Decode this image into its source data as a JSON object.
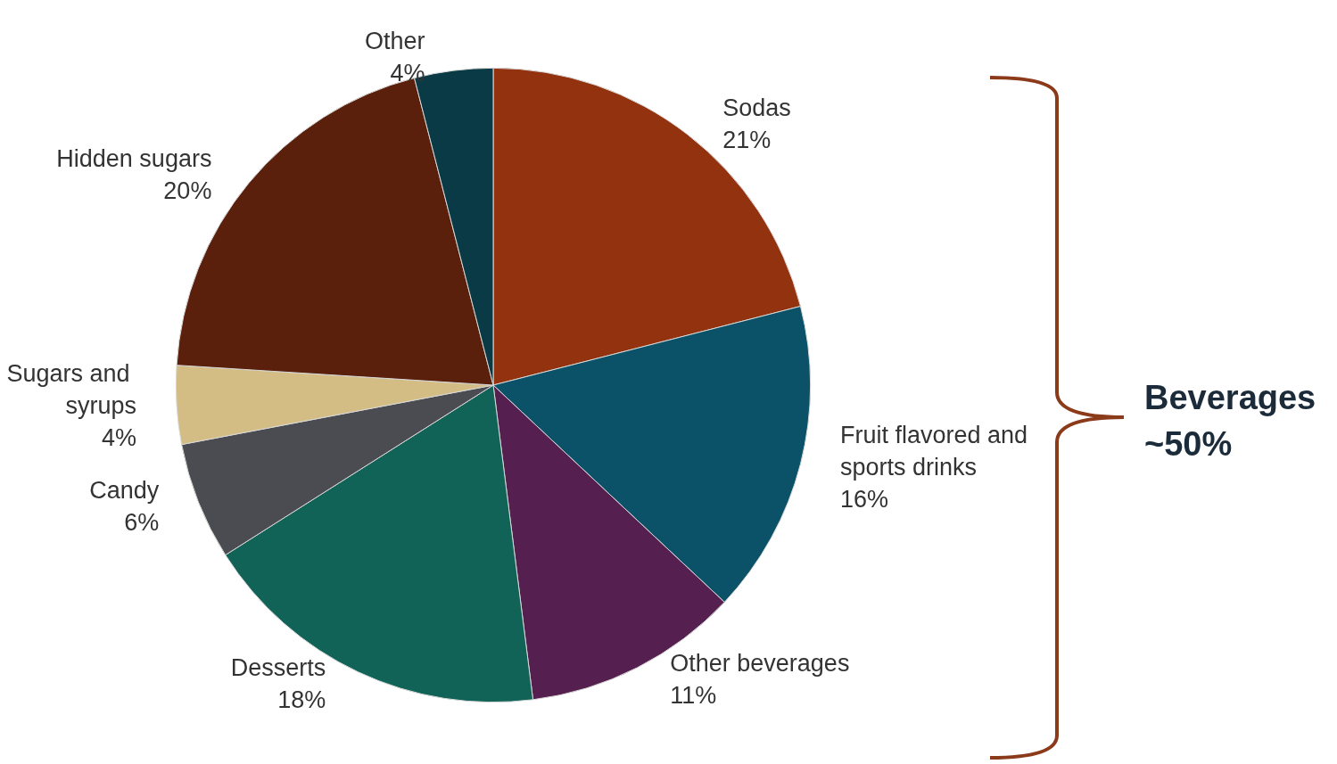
{
  "chart_data": {
    "type": "pie",
    "categories": [
      "Sodas",
      "Fruit flavored and sports drinks",
      "Other beverages",
      "Desserts",
      "Candy",
      "Sugars and syrups",
      "Hidden sugars",
      "Other"
    ],
    "values": [
      21,
      16,
      11,
      18,
      6,
      4,
      20,
      4
    ],
    "value_labels": [
      "21%",
      "16%",
      "11%",
      "18%",
      "6%",
      "4%",
      "20%",
      "4%"
    ],
    "colors": [
      "#93320f",
      "#0b5268",
      "#552050",
      "#116257",
      "#4a4c51",
      "#d4bd85",
      "#5a200c",
      "#0a3a45"
    ],
    "annotations": [
      "Beverages ~50%"
    ],
    "legend": false
  }
}
